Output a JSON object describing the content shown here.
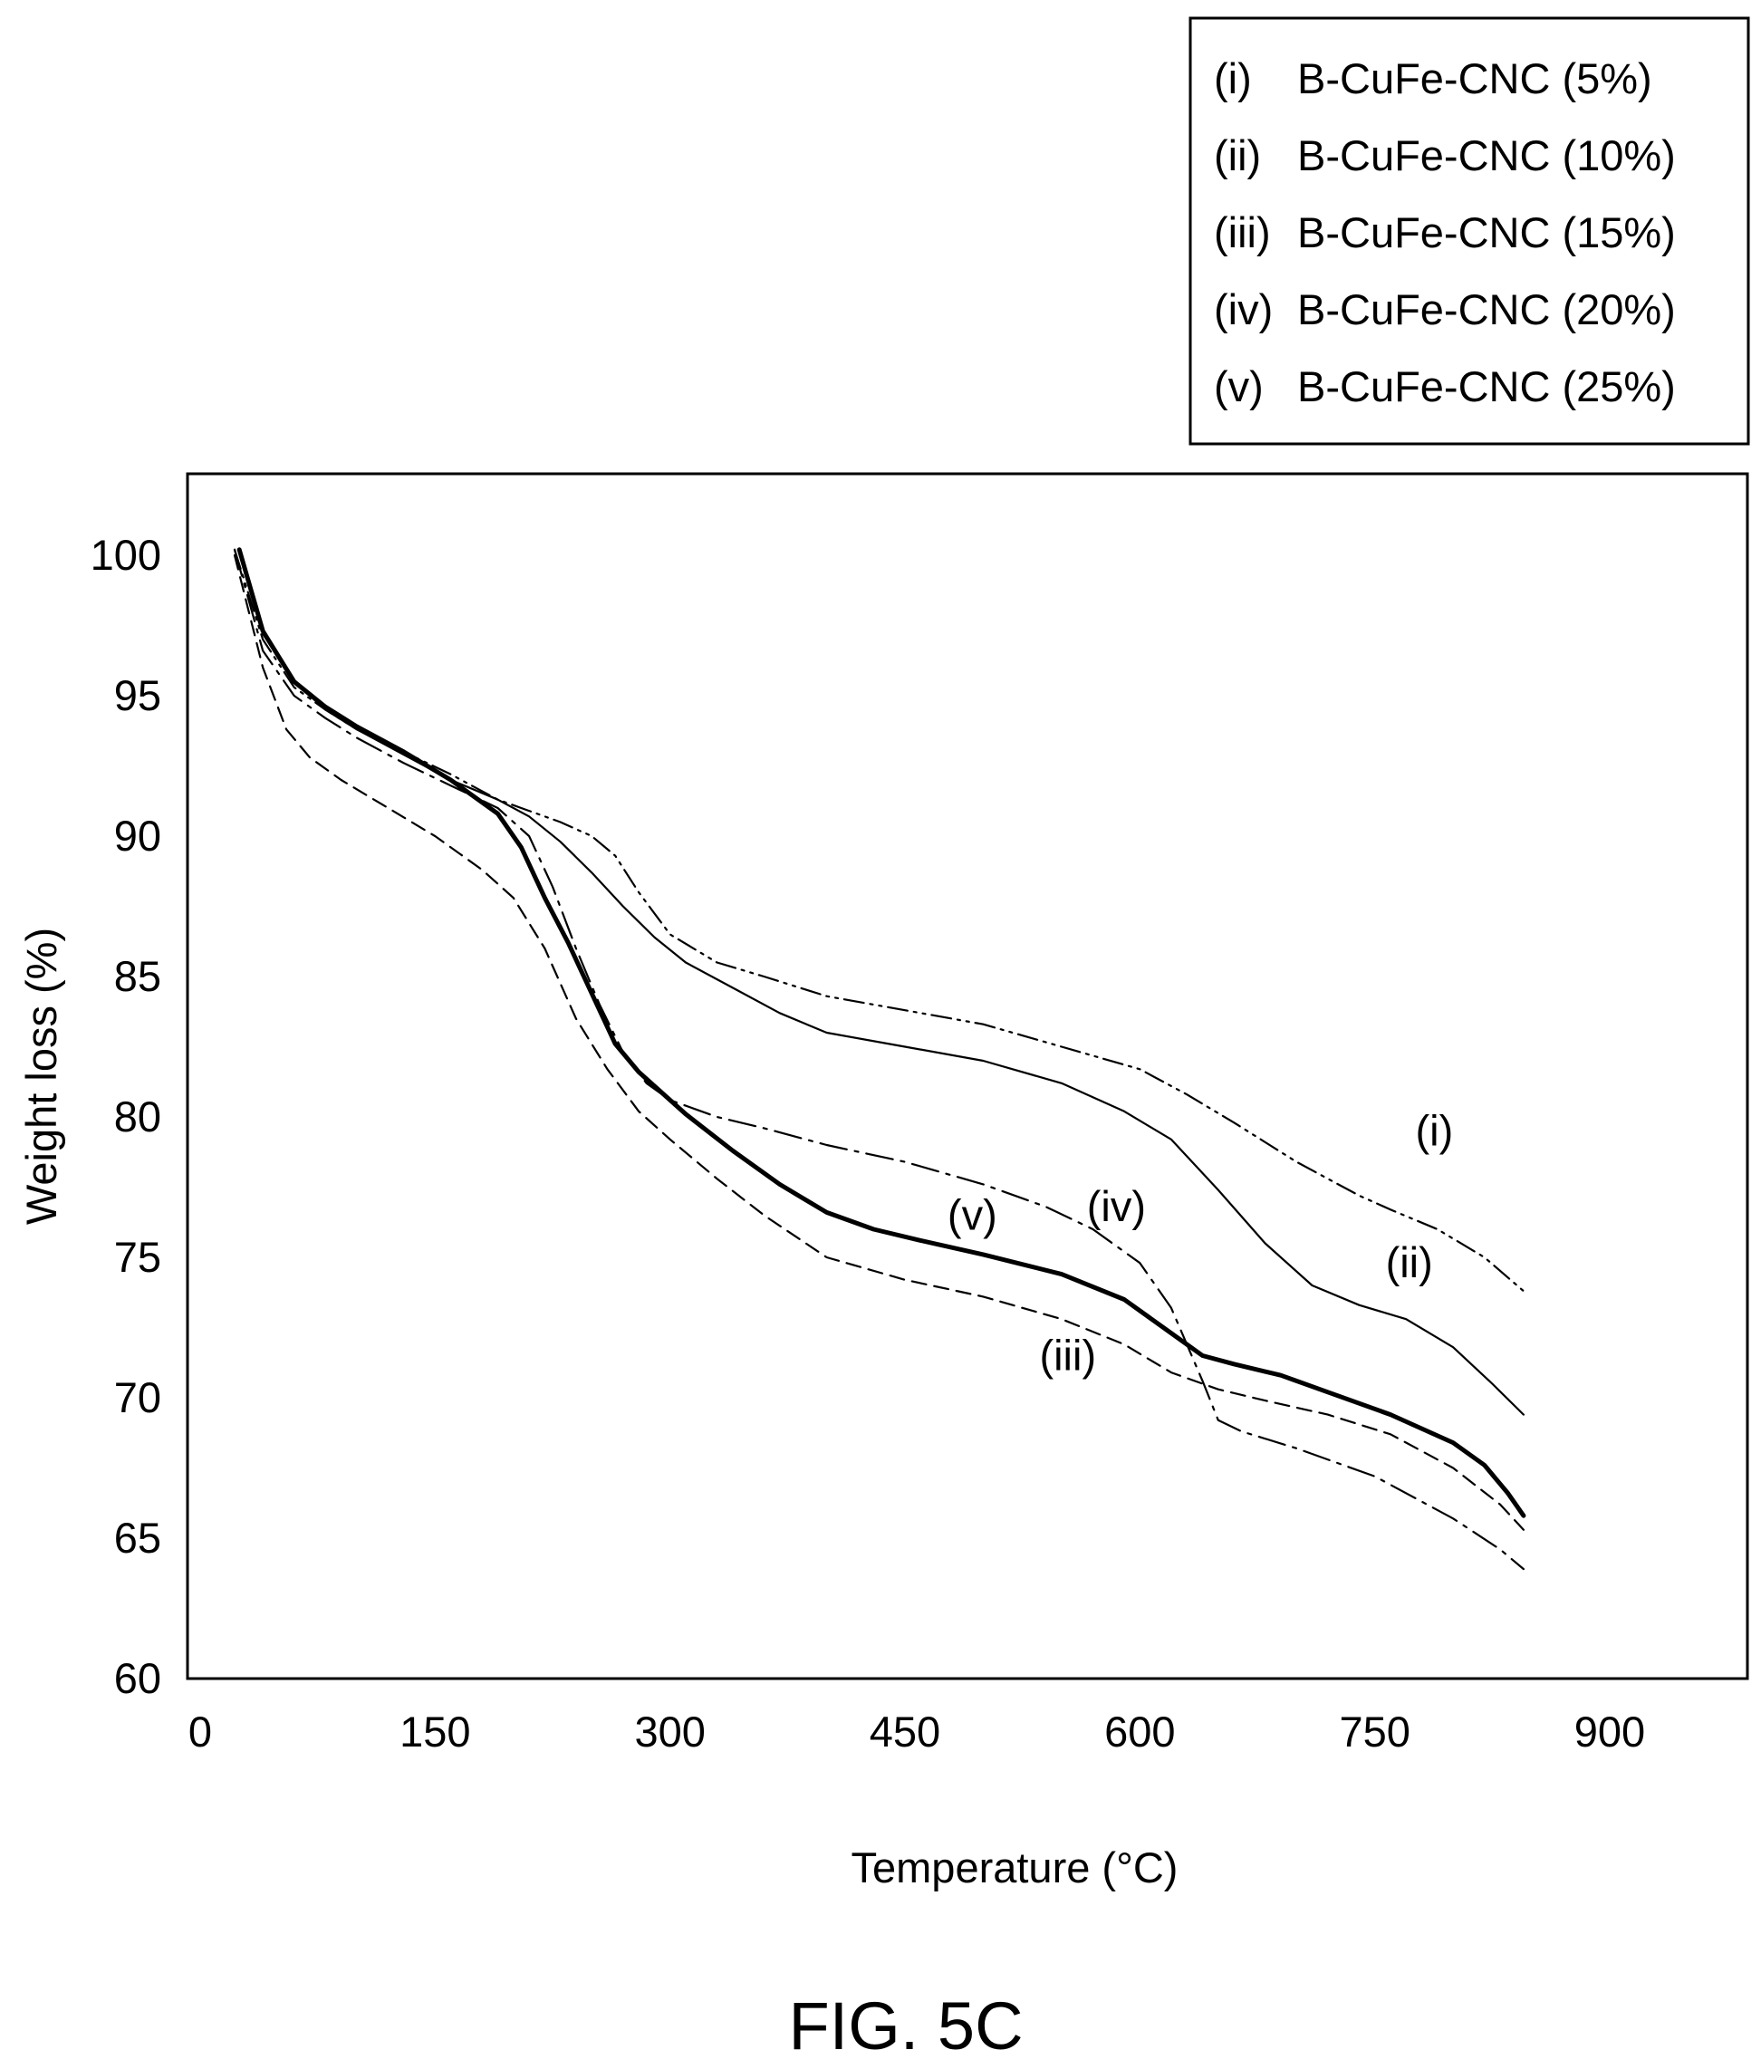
{
  "figure": {
    "caption": "FIG. 5C"
  },
  "chart_data": {
    "type": "line",
    "title": "",
    "xlabel": "Temperature (°C)",
    "ylabel": "Weight loss (%)",
    "xlim": [
      0,
      1000
    ],
    "ylim": [
      60,
      103
    ],
    "xticks": [
      0,
      150,
      300,
      450,
      600,
      750,
      900
    ],
    "yticks": [
      60,
      65,
      70,
      75,
      80,
      85,
      90,
      95,
      100
    ],
    "grid": false,
    "legend_position": "top-right, above plot",
    "series": [
      {
        "name": "B-CuFe-CNC (5%)",
        "id": "i",
        "tag": "(i)",
        "style": "dash-dot-dot",
        "x": [
          22,
          40,
          60,
          80,
          100,
          130,
          160,
          190,
          210,
          230,
          250,
          265,
          280,
          300,
          330,
          360,
          400,
          450,
          500,
          550,
          600,
          630,
          660,
          700,
          740,
          760,
          790,
          820,
          845
        ],
        "y": [
          100.2,
          97.0,
          95.3,
          94.5,
          93.8,
          93.0,
          92.2,
          91.3,
          90.9,
          90.5,
          90.0,
          89.3,
          88.0,
          86.5,
          85.5,
          85.0,
          84.3,
          83.8,
          83.3,
          82.5,
          81.7,
          80.8,
          79.8,
          78.4,
          77.2,
          76.7,
          76.0,
          75.0,
          73.8
        ]
      },
      {
        "name": "B-CuFe-CNC (10%)",
        "id": "ii",
        "tag": "(ii)",
        "style": "thin-solid",
        "x": [
          25,
          40,
          60,
          80,
          100,
          130,
          160,
          190,
          210,
          230,
          250,
          270,
          290,
          310,
          340,
          370,
          400,
          450,
          500,
          550,
          590,
          620,
          650,
          680,
          710,
          740,
          770,
          800,
          825,
          845
        ],
        "y": [
          100.2,
          97.2,
          95.5,
          94.5,
          93.8,
          92.9,
          92.0,
          91.3,
          90.7,
          89.8,
          88.7,
          87.5,
          86.4,
          85.5,
          84.6,
          83.7,
          83.0,
          82.5,
          82.0,
          81.2,
          80.2,
          79.2,
          77.4,
          75.5,
          74.0,
          73.3,
          72.8,
          71.8,
          70.5,
          69.4
        ]
      },
      {
        "name": "B-CuFe-CNC (15%)",
        "id": "iii",
        "tag": "(iii)",
        "style": "dashed",
        "x": [
          22,
          40,
          55,
          70,
          90,
          120,
          150,
          180,
          200,
          220,
          240,
          260,
          280,
          300,
          330,
          360,
          400,
          450,
          500,
          550,
          590,
          620,
          650,
          680,
          720,
          760,
          800,
          830,
          845
        ],
        "y": [
          100.0,
          96.0,
          93.8,
          92.8,
          92.0,
          91.0,
          90.0,
          88.8,
          87.8,
          86.0,
          83.5,
          81.7,
          80.2,
          79.2,
          77.8,
          76.5,
          75.0,
          74.2,
          73.6,
          72.8,
          71.9,
          70.9,
          70.3,
          69.9,
          69.4,
          68.7,
          67.5,
          66.2,
          65.3
        ]
      },
      {
        "name": "B-CuFe-CNC (20%)",
        "id": "iv",
        "tag": "(iv)",
        "style": "long-dash-dot",
        "x": [
          22,
          40,
          60,
          80,
          100,
          130,
          160,
          190,
          210,
          225,
          240,
          255,
          270,
          285,
          300,
          330,
          360,
          400,
          450,
          500,
          540,
          570,
          600,
          620,
          640,
          650,
          665,
          700,
          750,
          800,
          830,
          845
        ],
        "y": [
          100.2,
          96.6,
          95.0,
          94.2,
          93.5,
          92.6,
          91.8,
          91.0,
          90.0,
          88.2,
          86.0,
          84.0,
          82.3,
          81.2,
          80.6,
          80.0,
          79.6,
          79.0,
          78.4,
          77.6,
          76.8,
          76.0,
          74.8,
          73.2,
          70.6,
          69.2,
          68.8,
          68.2,
          67.2,
          65.7,
          64.6,
          63.9
        ]
      },
      {
        "name": "B-CuFe-CNC (25%)",
        "id": "v",
        "tag": "(v)",
        "style": "thick-solid",
        "x": [
          25,
          40,
          60,
          80,
          100,
          130,
          160,
          190,
          205,
          220,
          235,
          250,
          265,
          280,
          290,
          310,
          340,
          370,
          400,
          430,
          460,
          500,
          550,
          590,
          620,
          640,
          660,
          690,
          720,
          760,
          800,
          820,
          835,
          845
        ],
        "y": [
          100.2,
          97.3,
          95.5,
          94.6,
          93.9,
          93.0,
          92.0,
          90.8,
          89.6,
          87.8,
          86.2,
          84.4,
          82.6,
          81.6,
          81.1,
          80.1,
          78.8,
          77.6,
          76.6,
          76.0,
          75.6,
          75.1,
          74.4,
          73.5,
          72.3,
          71.5,
          71.2,
          70.8,
          70.2,
          69.4,
          68.4,
          67.6,
          66.6,
          65.8
        ]
      }
    ],
    "annotations": [
      {
        "id": "i",
        "text": "(i)",
        "x": 788,
        "y": 79.5
      },
      {
        "id": "ii",
        "text": "(ii)",
        "x": 772,
        "y": 74.8
      },
      {
        "id": "iii",
        "text": "(iii)",
        "x": 554,
        "y": 71.5
      },
      {
        "id": "iv",
        "text": "(iv)",
        "x": 585,
        "y": 76.8
      },
      {
        "id": "v",
        "text": "(v)",
        "x": 493,
        "y": 76.5
      }
    ]
  }
}
